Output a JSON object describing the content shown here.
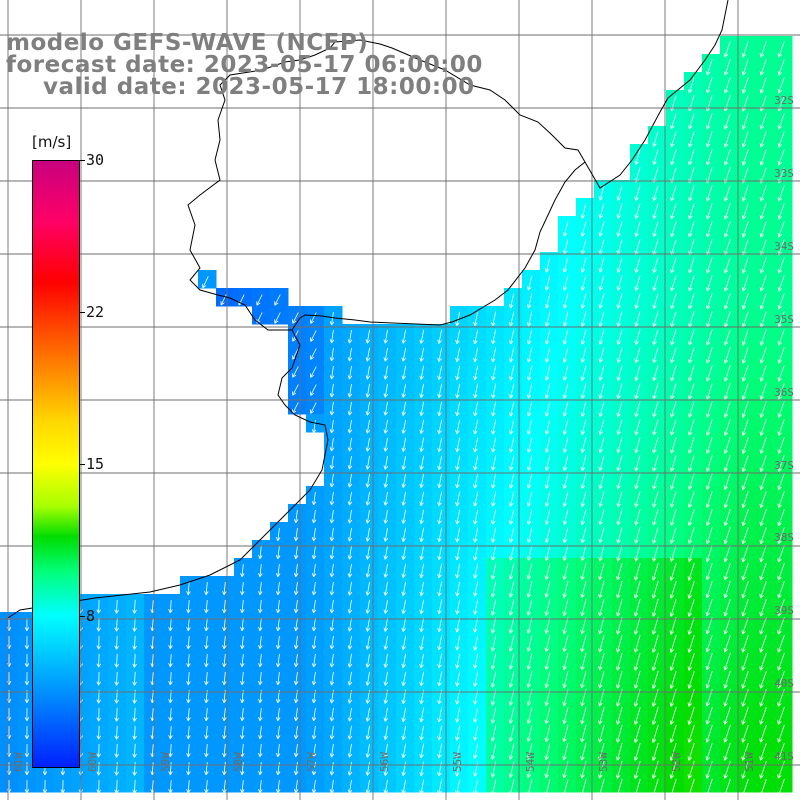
{
  "title": {
    "line1": "modelo GEFS-WAVE (NCEP)",
    "line2": "forecast date: 2023-05-17 06:00:00",
    "line3": "valid date: 2023-05-17 18:00:00"
  },
  "colorbar": {
    "unit": "[m/s]",
    "ticks": [
      "30",
      "22",
      "15",
      "8"
    ],
    "tick_values": [
      30,
      22,
      15,
      8
    ],
    "range": [
      0,
      30
    ]
  },
  "map": {
    "land_color": "#ffffff",
    "grid_color": "#6e6e6e",
    "coast_color": "#000000",
    "arrow_color": "#ffffff",
    "lat_labels": [
      "32S",
      "33S",
      "34S",
      "35S",
      "36S",
      "37S",
      "38S",
      "39S",
      "40S",
      "41S"
    ],
    "lon_labels": [
      "61W",
      "60W",
      "59W",
      "58W",
      "57W",
      "56W",
      "55W",
      "54W",
      "53W",
      "52W",
      "51W"
    ]
  }
}
